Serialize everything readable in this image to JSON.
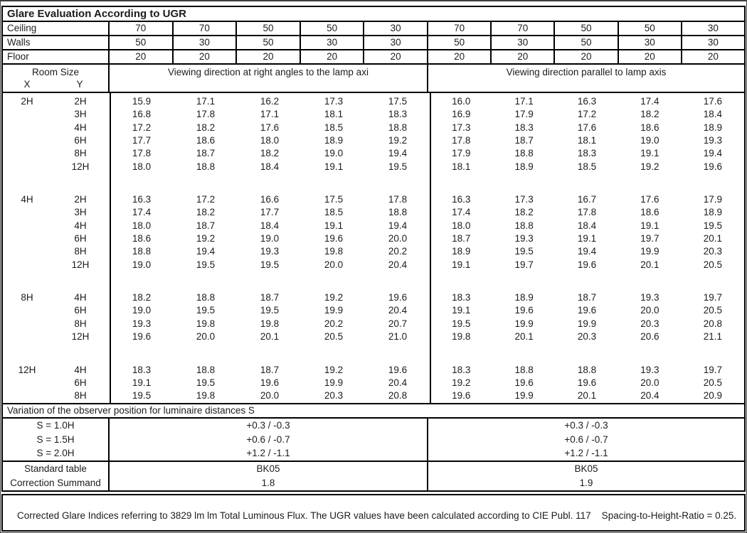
{
  "title": "Glare Evaluation According to UGR",
  "surface_rows": [
    {
      "label": "Ceiling",
      "values": [
        "70",
        "70",
        "50",
        "50",
        "30",
        "70",
        "70",
        "50",
        "50",
        "30"
      ]
    },
    {
      "label": "Walls",
      "values": [
        "50",
        "30",
        "50",
        "30",
        "30",
        "50",
        "30",
        "50",
        "30",
        "30"
      ]
    },
    {
      "label": "Floor",
      "values": [
        "20",
        "20",
        "20",
        "20",
        "20",
        "20",
        "20",
        "20",
        "20",
        "20"
      ]
    }
  ],
  "header": {
    "room_size": "Room Size",
    "x": "X",
    "y": "Y",
    "left_heading": "Viewing direction at right angles to the lamp axi",
    "right_heading": "Viewing direction parallel to lamp axis"
  },
  "sections": [
    {
      "x": "2H",
      "rows": [
        {
          "y": "2H",
          "left": [
            "15.9",
            "17.1",
            "16.2",
            "17.3",
            "17.5"
          ],
          "right": [
            "16.0",
            "17.1",
            "16.3",
            "17.4",
            "17.6"
          ]
        },
        {
          "y": "3H",
          "left": [
            "16.8",
            "17.8",
            "17.1",
            "18.1",
            "18.3"
          ],
          "right": [
            "16.9",
            "17.9",
            "17.2",
            "18.2",
            "18.4"
          ]
        },
        {
          "y": "4H",
          "left": [
            "17.2",
            "18.2",
            "17.6",
            "18.5",
            "18.8"
          ],
          "right": [
            "17.3",
            "18.3",
            "17.6",
            "18.6",
            "18.9"
          ]
        },
        {
          "y": "6H",
          "left": [
            "17.7",
            "18.6",
            "18.0",
            "18.9",
            "19.2"
          ],
          "right": [
            "17.8",
            "18.7",
            "18.1",
            "19.0",
            "19.3"
          ]
        },
        {
          "y": "8H",
          "left": [
            "17.8",
            "18.7",
            "18.2",
            "19.0",
            "19.4"
          ],
          "right": [
            "17.9",
            "18.8",
            "18.3",
            "19.1",
            "19.4"
          ]
        },
        {
          "y": "12H",
          "left": [
            "18.0",
            "18.8",
            "18.4",
            "19.1",
            "19.5"
          ],
          "right": [
            "18.1",
            "18.9",
            "18.5",
            "19.2",
            "19.6"
          ]
        }
      ]
    },
    {
      "x": "4H",
      "rows": [
        {
          "y": "2H",
          "left": [
            "16.3",
            "17.2",
            "16.6",
            "17.5",
            "17.8"
          ],
          "right": [
            "16.3",
            "17.3",
            "16.7",
            "17.6",
            "17.9"
          ]
        },
        {
          "y": "3H",
          "left": [
            "17.4",
            "18.2",
            "17.7",
            "18.5",
            "18.8"
          ],
          "right": [
            "17.4",
            "18.2",
            "17.8",
            "18.6",
            "18.9"
          ]
        },
        {
          "y": "4H",
          "left": [
            "18.0",
            "18.7",
            "18.4",
            "19.1",
            "19.4"
          ],
          "right": [
            "18.0",
            "18.8",
            "18.4",
            "19.1",
            "19.5"
          ]
        },
        {
          "y": "6H",
          "left": [
            "18.6",
            "19.2",
            "19.0",
            "19.6",
            "20.0"
          ],
          "right": [
            "18.7",
            "19.3",
            "19.1",
            "19.7",
            "20.1"
          ]
        },
        {
          "y": "8H",
          "left": [
            "18.8",
            "19.4",
            "19.3",
            "19.8",
            "20.2"
          ],
          "right": [
            "18.9",
            "19.5",
            "19.4",
            "19.9",
            "20.3"
          ]
        },
        {
          "y": "12H",
          "left": [
            "19.0",
            "19.5",
            "19.5",
            "20.0",
            "20.4"
          ],
          "right": [
            "19.1",
            "19.7",
            "19.6",
            "20.1",
            "20.5"
          ]
        }
      ]
    },
    {
      "x": "8H",
      "rows": [
        {
          "y": "4H",
          "left": [
            "18.2",
            "18.8",
            "18.7",
            "19.2",
            "19.6"
          ],
          "right": [
            "18.3",
            "18.9",
            "18.7",
            "19.3",
            "19.7"
          ]
        },
        {
          "y": "6H",
          "left": [
            "19.0",
            "19.5",
            "19.5",
            "19.9",
            "20.4"
          ],
          "right": [
            "19.1",
            "19.6",
            "19.6",
            "20.0",
            "20.5"
          ]
        },
        {
          "y": "8H",
          "left": [
            "19.3",
            "19.8",
            "19.8",
            "20.2",
            "20.7"
          ],
          "right": [
            "19.5",
            "19.9",
            "19.9",
            "20.3",
            "20.8"
          ]
        },
        {
          "y": "12H",
          "left": [
            "19.6",
            "20.0",
            "20.1",
            "20.5",
            "21.0"
          ],
          "right": [
            "19.8",
            "20.1",
            "20.3",
            "20.6",
            "21.1"
          ]
        }
      ]
    },
    {
      "x": "12H",
      "rows": [
        {
          "y": "4H",
          "left": [
            "18.3",
            "18.8",
            "18.7",
            "19.2",
            "19.6"
          ],
          "right": [
            "18.3",
            "18.8",
            "18.8",
            "19.3",
            "19.7"
          ]
        },
        {
          "y": "6H",
          "left": [
            "19.1",
            "19.5",
            "19.6",
            "19.9",
            "20.4"
          ],
          "right": [
            "19.2",
            "19.6",
            "19.6",
            "20.0",
            "20.5"
          ]
        },
        {
          "y": "8H",
          "left": [
            "19.5",
            "19.8",
            "20.0",
            "20.3",
            "20.8"
          ],
          "right": [
            "19.6",
            "19.9",
            "20.1",
            "20.4",
            "20.9"
          ]
        }
      ]
    }
  ],
  "variation": {
    "heading": "Variation of the observer position for luminaire distances S",
    "rows": [
      {
        "label": "S = 1.0H",
        "left": "+0.3 / -0.3",
        "right": "+0.3 / -0.3"
      },
      {
        "label": "S = 1.5H",
        "left": "+0.6 / -0.7",
        "right": "+0.6 / -0.7"
      },
      {
        "label": "S = 2.0H",
        "left": "+1.2 / -1.1",
        "right": "+1.2 / -1.1"
      }
    ]
  },
  "summary": {
    "rows": [
      {
        "label": "Standard table",
        "left": "BK05",
        "right": "BK05"
      },
      {
        "label": "Correction Summand",
        "left": "1.8",
        "right": "1.9"
      }
    ]
  },
  "footer": "Corrected Glare Indices referring to 3829 lm lm Total Luminous Flux. The UGR values have been calculated according to CIE Publ. 117    Spacing-to-Height-Ratio = 0.25."
}
